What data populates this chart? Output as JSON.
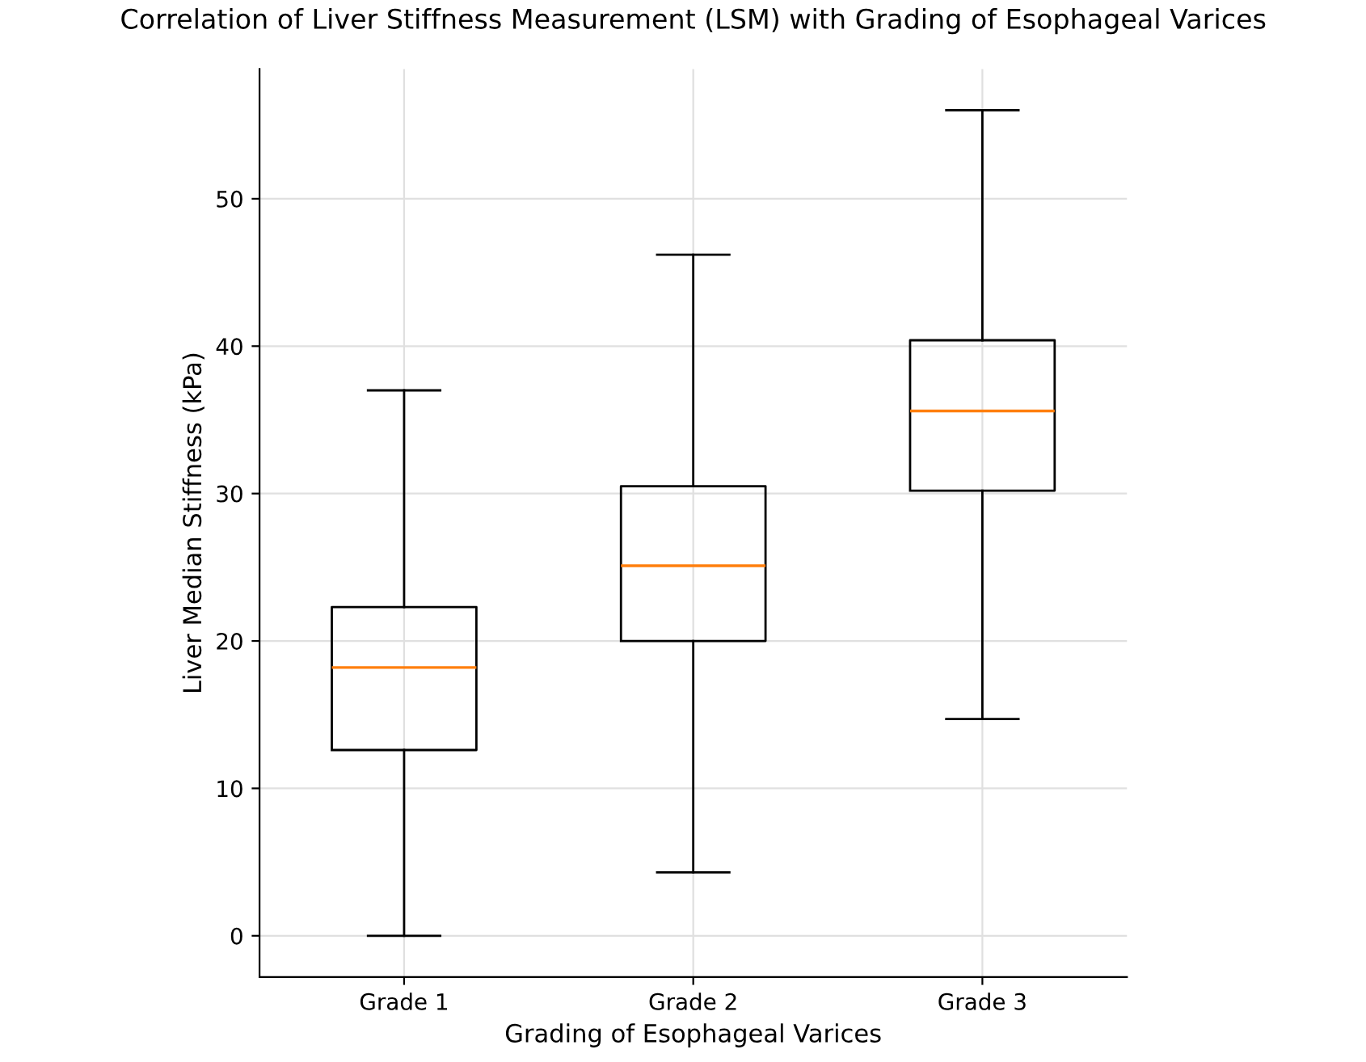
{
  "chart_data": {
    "type": "box",
    "title": "Correlation of Liver Stiffness Measurement (LSM) with Grading of Esophageal Varices",
    "xlabel": "Grading of Esophageal Varices",
    "ylabel": "Liver Median Stiffness (kPa)",
    "categories": [
      "Grade 1",
      "Grade 2",
      "Grade 3"
    ],
    "boxes": [
      {
        "low": 0,
        "q1": 12.6,
        "median": 18.2,
        "q3": 22.3,
        "high": 37.0
      },
      {
        "low": 4.3,
        "q1": 20.0,
        "median": 25.1,
        "q3": 30.5,
        "high": 46.2
      },
      {
        "low": 14.7,
        "q1": 30.2,
        "median": 35.6,
        "q3": 40.4,
        "high": 56.0
      }
    ],
    "color": "#000000",
    "ylim": [
      -2.8,
      58.8
    ],
    "yticks": [
      0,
      10,
      20,
      30,
      40,
      50
    ],
    "grid": true
  }
}
